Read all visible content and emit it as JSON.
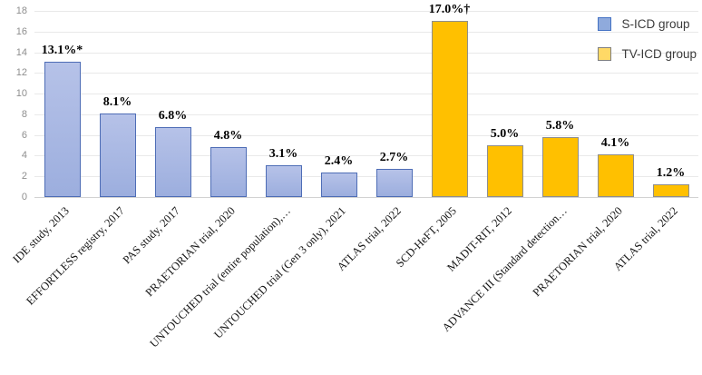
{
  "chart_data": {
    "type": "bar",
    "title": "",
    "xlabel": "",
    "ylabel": "",
    "ylim": [
      0,
      18
    ],
    "yticks": [
      0,
      2,
      4,
      6,
      8,
      10,
      12,
      14,
      16,
      18
    ],
    "grid": true,
    "legend_position": "top-right",
    "groups": [
      {
        "name": "S-ICD group",
        "fill": "#b6c2e8",
        "fill2": "#9caede",
        "border": "#4e6db6",
        "legend_fill": "#8faadc",
        "legend_border": "#4472c4"
      },
      {
        "name": "TV-ICD group",
        "fill": "#ffc000",
        "fill2": "",
        "border": "#8e8e8e",
        "legend_fill": "#ffd966",
        "legend_border": "#7f7f7f"
      }
    ],
    "items": [
      {
        "label": "IDE study, 2013",
        "value": 13.1,
        "display": "13.1%*",
        "group": 0
      },
      {
        "label": "EFFORTLESS registry, 2017",
        "value": 8.1,
        "display": "8.1%",
        "group": 0
      },
      {
        "label": "PAS study, 2017",
        "value": 6.8,
        "display": "6.8%",
        "group": 0
      },
      {
        "label": "PRAETORIAN trial, 2020",
        "value": 4.8,
        "display": "4.8%",
        "group": 0
      },
      {
        "label": "UNTOUCHED trial (entire population),…",
        "value": 3.1,
        "display": "3.1%",
        "group": 0
      },
      {
        "label": "UNTOUCHED trial (Gen 3 only), 2021",
        "value": 2.4,
        "display": "2.4%",
        "group": 0
      },
      {
        "label": "ATLAS trial, 2022",
        "value": 2.7,
        "display": "2.7%",
        "group": 0
      },
      {
        "label": "SCD-HeFT, 2005",
        "value": 17.0,
        "display": "17.0%†",
        "group": 1
      },
      {
        "label": "MADIT-RIT, 2012",
        "value": 5.0,
        "display": "5.0%",
        "group": 1
      },
      {
        "label": "ADVANCE III (Standard detection…",
        "value": 5.8,
        "display": "5.8%",
        "group": 1
      },
      {
        "label": "PRAETORIAN trial, 2020",
        "value": 4.1,
        "display": "4.1%",
        "group": 1
      },
      {
        "label": "ATLAS trial, 2022",
        "value": 1.2,
        "display": "1.2%",
        "group": 1
      }
    ],
    "gridline_color": "#e9e9e9",
    "axis_line_color": "#d2d2d2"
  },
  "legend": {
    "items": [
      {
        "label": "S-ICD group"
      },
      {
        "label": "TV-ICD group"
      }
    ]
  }
}
